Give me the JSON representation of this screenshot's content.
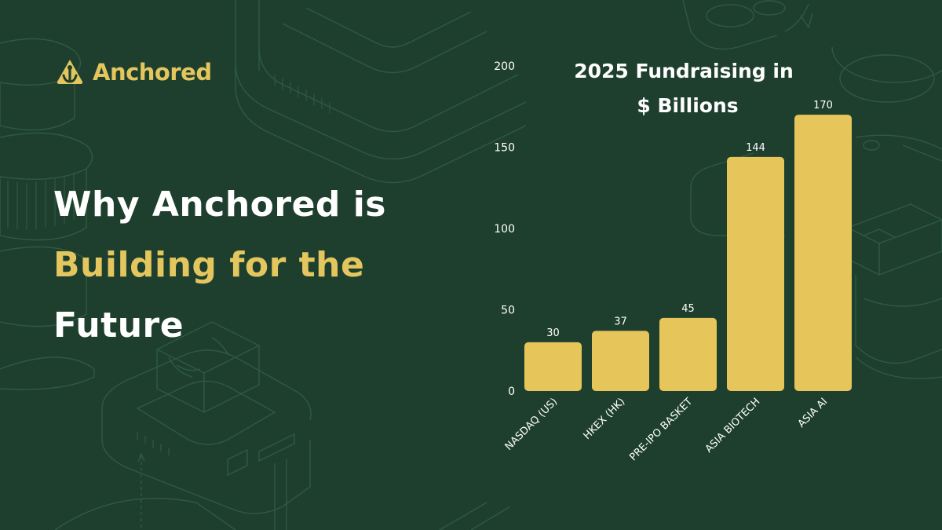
{
  "brand": {
    "name": "Anchored",
    "logo_icon": "anchor-icon",
    "color": "#e4c65e"
  },
  "headline": {
    "line1": "Why Anchored is",
    "line2": "Building for the",
    "line3": "Future"
  },
  "colors": {
    "background": "#1e3f2e",
    "accent": "#e4c65e",
    "bar": "#e6c65a",
    "text": "#ffffff"
  },
  "chart_data": {
    "type": "bar",
    "title": "2025 Fundraising in $ Billions",
    "title_lines": [
      "2025 Fundraising in",
      "$ Billions"
    ],
    "categories": [
      "NASDAQ (US)",
      "HKEX (HK)",
      "PRE-IPO BASKET",
      "ASIA BIOTECH",
      "ASIA AI"
    ],
    "values": [
      30,
      37,
      45,
      144,
      170
    ],
    "ylim": [
      0,
      200
    ],
    "yticks": [
      0,
      50,
      100,
      150,
      200
    ],
    "xlabel": "",
    "ylabel": "",
    "grid": false,
    "data_labels": true,
    "x_tick_rotation": -45
  }
}
